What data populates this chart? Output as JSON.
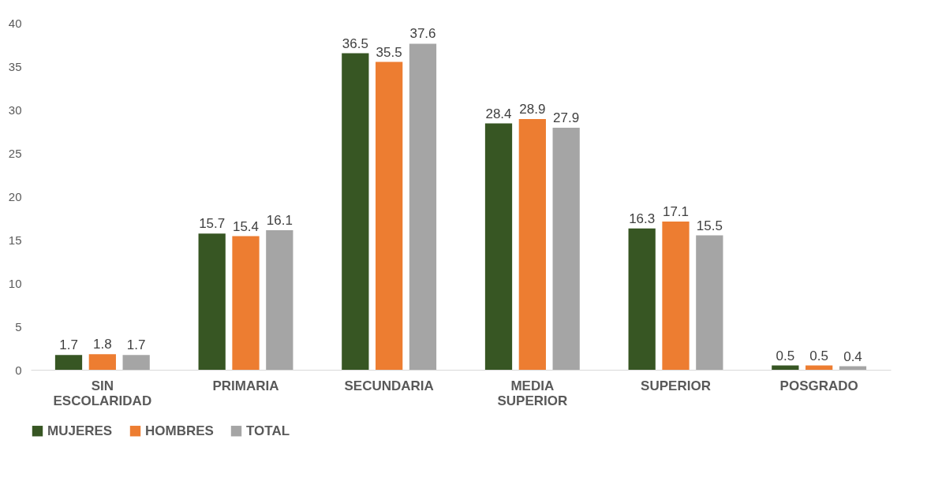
{
  "chart_data": {
    "type": "bar",
    "categories": [
      "SIN ESCOLARIDAD",
      "PRIMARIA",
      "SECUNDARIA",
      "MEDIA SUPERIOR",
      "SUPERIOR",
      "POSGRADO"
    ],
    "series": [
      {
        "name": "MUJERES",
        "color": "#375623",
        "values": [
          1.7,
          15.7,
          36.5,
          28.4,
          16.3,
          0.5
        ]
      },
      {
        "name": "HOMBRES",
        "color": "#ed7d31",
        "values": [
          1.8,
          15.4,
          35.5,
          28.9,
          17.1,
          0.5
        ]
      },
      {
        "name": "TOTAL",
        "color": "#a5a5a5",
        "values": [
          1.7,
          16.1,
          37.6,
          27.9,
          15.5,
          0.4
        ]
      }
    ],
    "ylim": [
      0,
      40
    ],
    "yticks": [
      0,
      5,
      10,
      15,
      20,
      25,
      30,
      35,
      40
    ],
    "grid": false,
    "legend": "bottom",
    "data_labels": true
  }
}
